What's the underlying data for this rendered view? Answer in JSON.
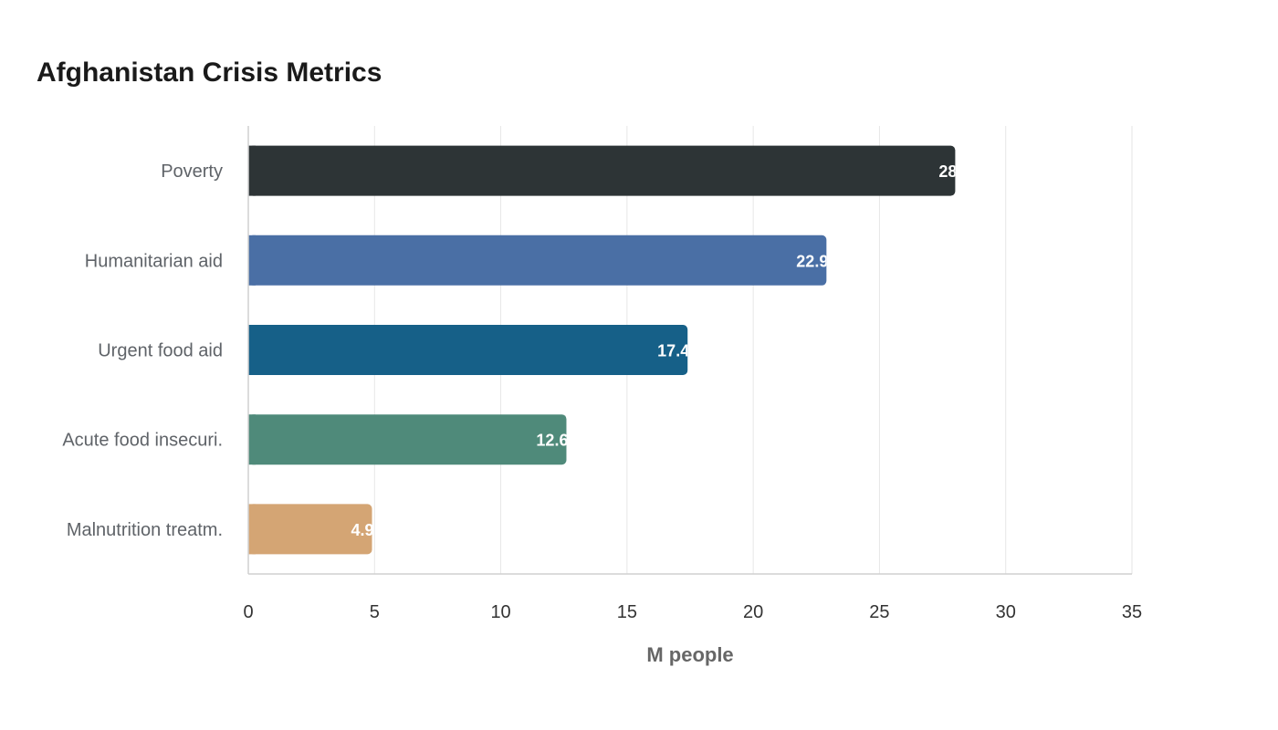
{
  "chart_data": {
    "type": "bar",
    "orientation": "horizontal",
    "title": "Afghanistan Crisis Metrics",
    "xlabel": "M people",
    "ylabel": "",
    "xlim": [
      0,
      35
    ],
    "x_ticks": [
      0,
      5,
      10,
      15,
      20,
      25,
      30,
      35
    ],
    "grid": true,
    "categories": [
      "Poverty",
      "Humanitarian aid",
      "Urgent food aid",
      "Acute food insecuri.",
      "Malnutrition treatm."
    ],
    "values": [
      28,
      22.9,
      17.4,
      12.6,
      4.9
    ],
    "colors": [
      "#2d3436",
      "#4a6fa5",
      "#166088",
      "#4f8a7a",
      "#d4a574"
    ]
  }
}
